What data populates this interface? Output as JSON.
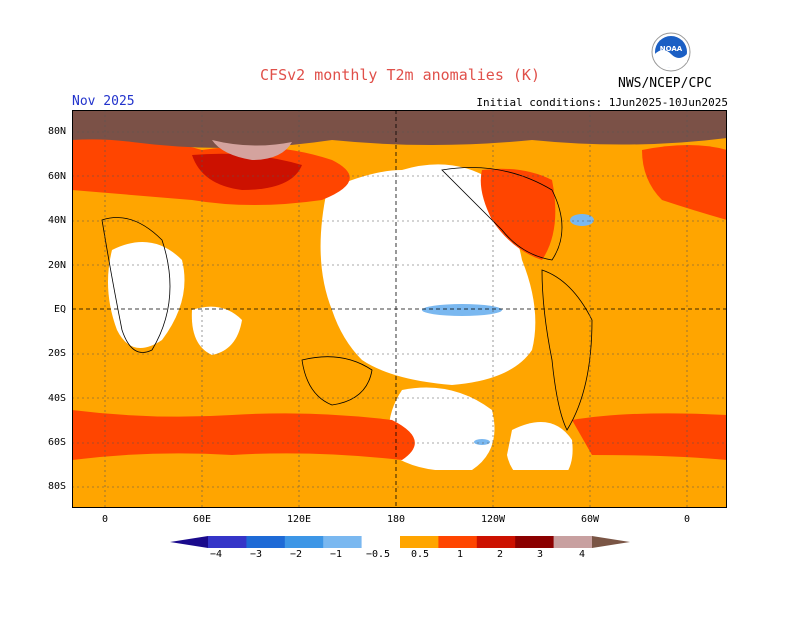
{
  "title": "CFSv2 monthly T2m anomalies (K)",
  "month": "Nov 2025",
  "initial_conditions": "Initial conditions: 1Jun2025-10Jun2025",
  "agency": "NWS/NCEP/CPC",
  "logo_text": "NOAA",
  "lat_labels": [
    "80N",
    "60N",
    "40N",
    "20N",
    "EQ",
    "20S",
    "40S",
    "60S",
    "80S"
  ],
  "lon_labels": [
    "0",
    "60E",
    "120E",
    "180",
    "120W",
    "60W",
    "0"
  ],
  "colorbar": {
    "labels": [
      "−4",
      "−3",
      "−2",
      "−1",
      "−0.5",
      "0.5",
      "1",
      "2",
      "3",
      "4"
    ],
    "colors": [
      "#1a0a8c",
      "#3535c8",
      "#1e6ad6",
      "#3d96e6",
      "#7ab8f0",
      "#ffffff",
      "#ffa500",
      "#ff4500",
      "#cc1100",
      "#8b0000",
      "#c8a0a0",
      "#7a5545"
    ]
  },
  "colors": {
    "warm_light": "#ffa500",
    "warm_mid": "#ff4500",
    "warm_strong": "#dd2200",
    "warm_dark": "#a00000",
    "warm_pink": "#d4a39e",
    "warm_brown": "#7b5147",
    "cool_light": "#7ab8f0"
  }
}
